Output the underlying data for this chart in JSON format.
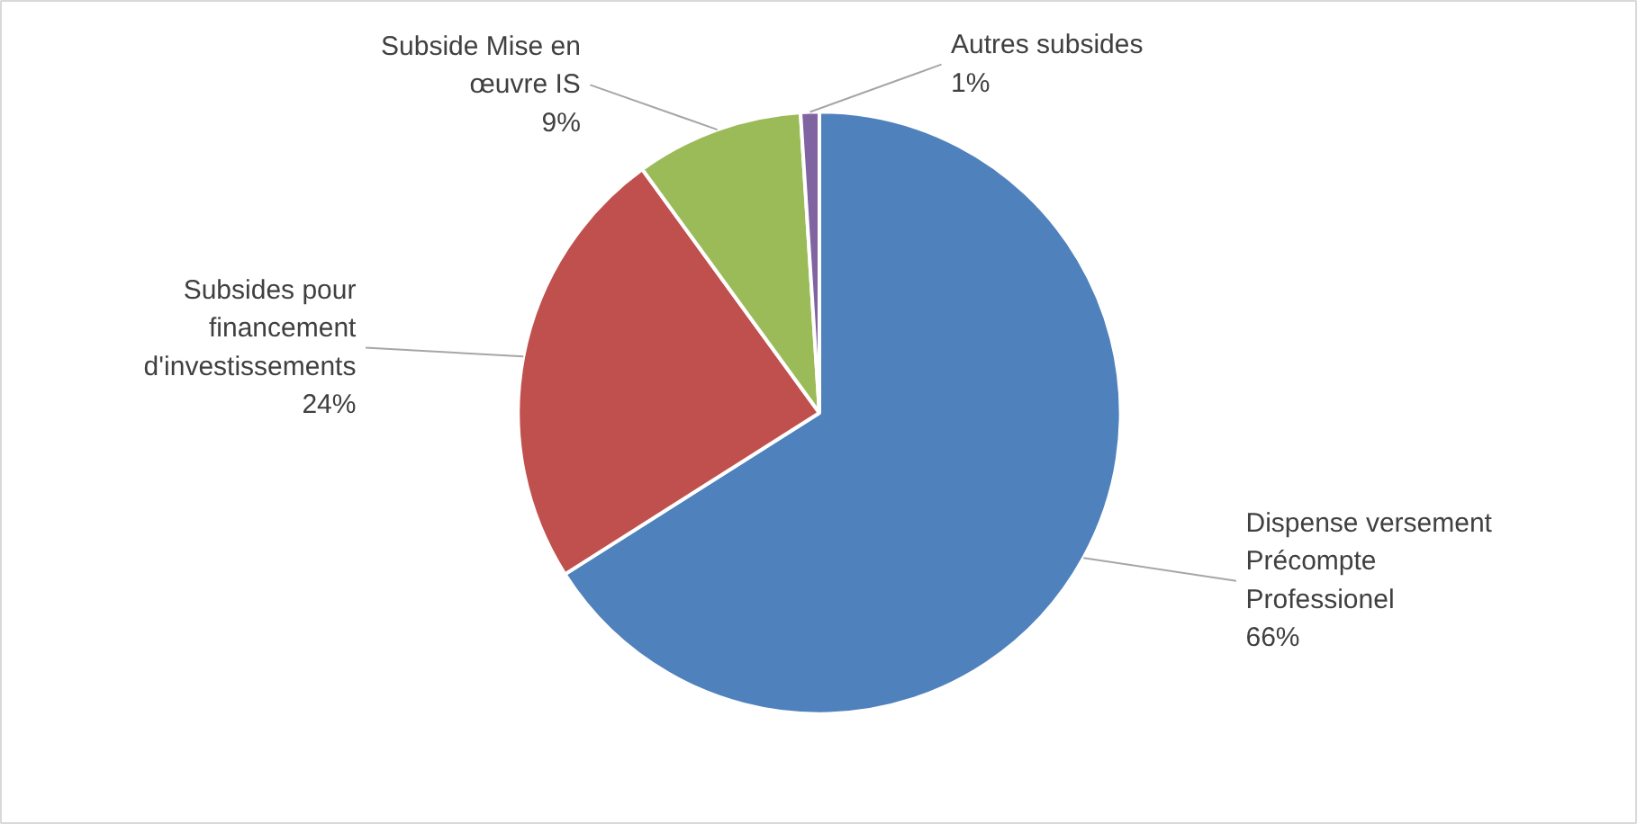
{
  "chart_data": {
    "type": "pie",
    "categories": [
      "Dispense versement Précompte Professionel",
      "Subsides pour financement d'investissements",
      "Subside Mise en œuvre IS",
      "Autres subsides"
    ],
    "values": [
      66,
      24,
      9,
      1
    ],
    "value_labels": [
      "66%",
      "24%",
      "9%",
      "1%"
    ],
    "colors": [
      "#4f81bd",
      "#c0504d",
      "#9bbb59",
      "#8064a2"
    ]
  }
}
